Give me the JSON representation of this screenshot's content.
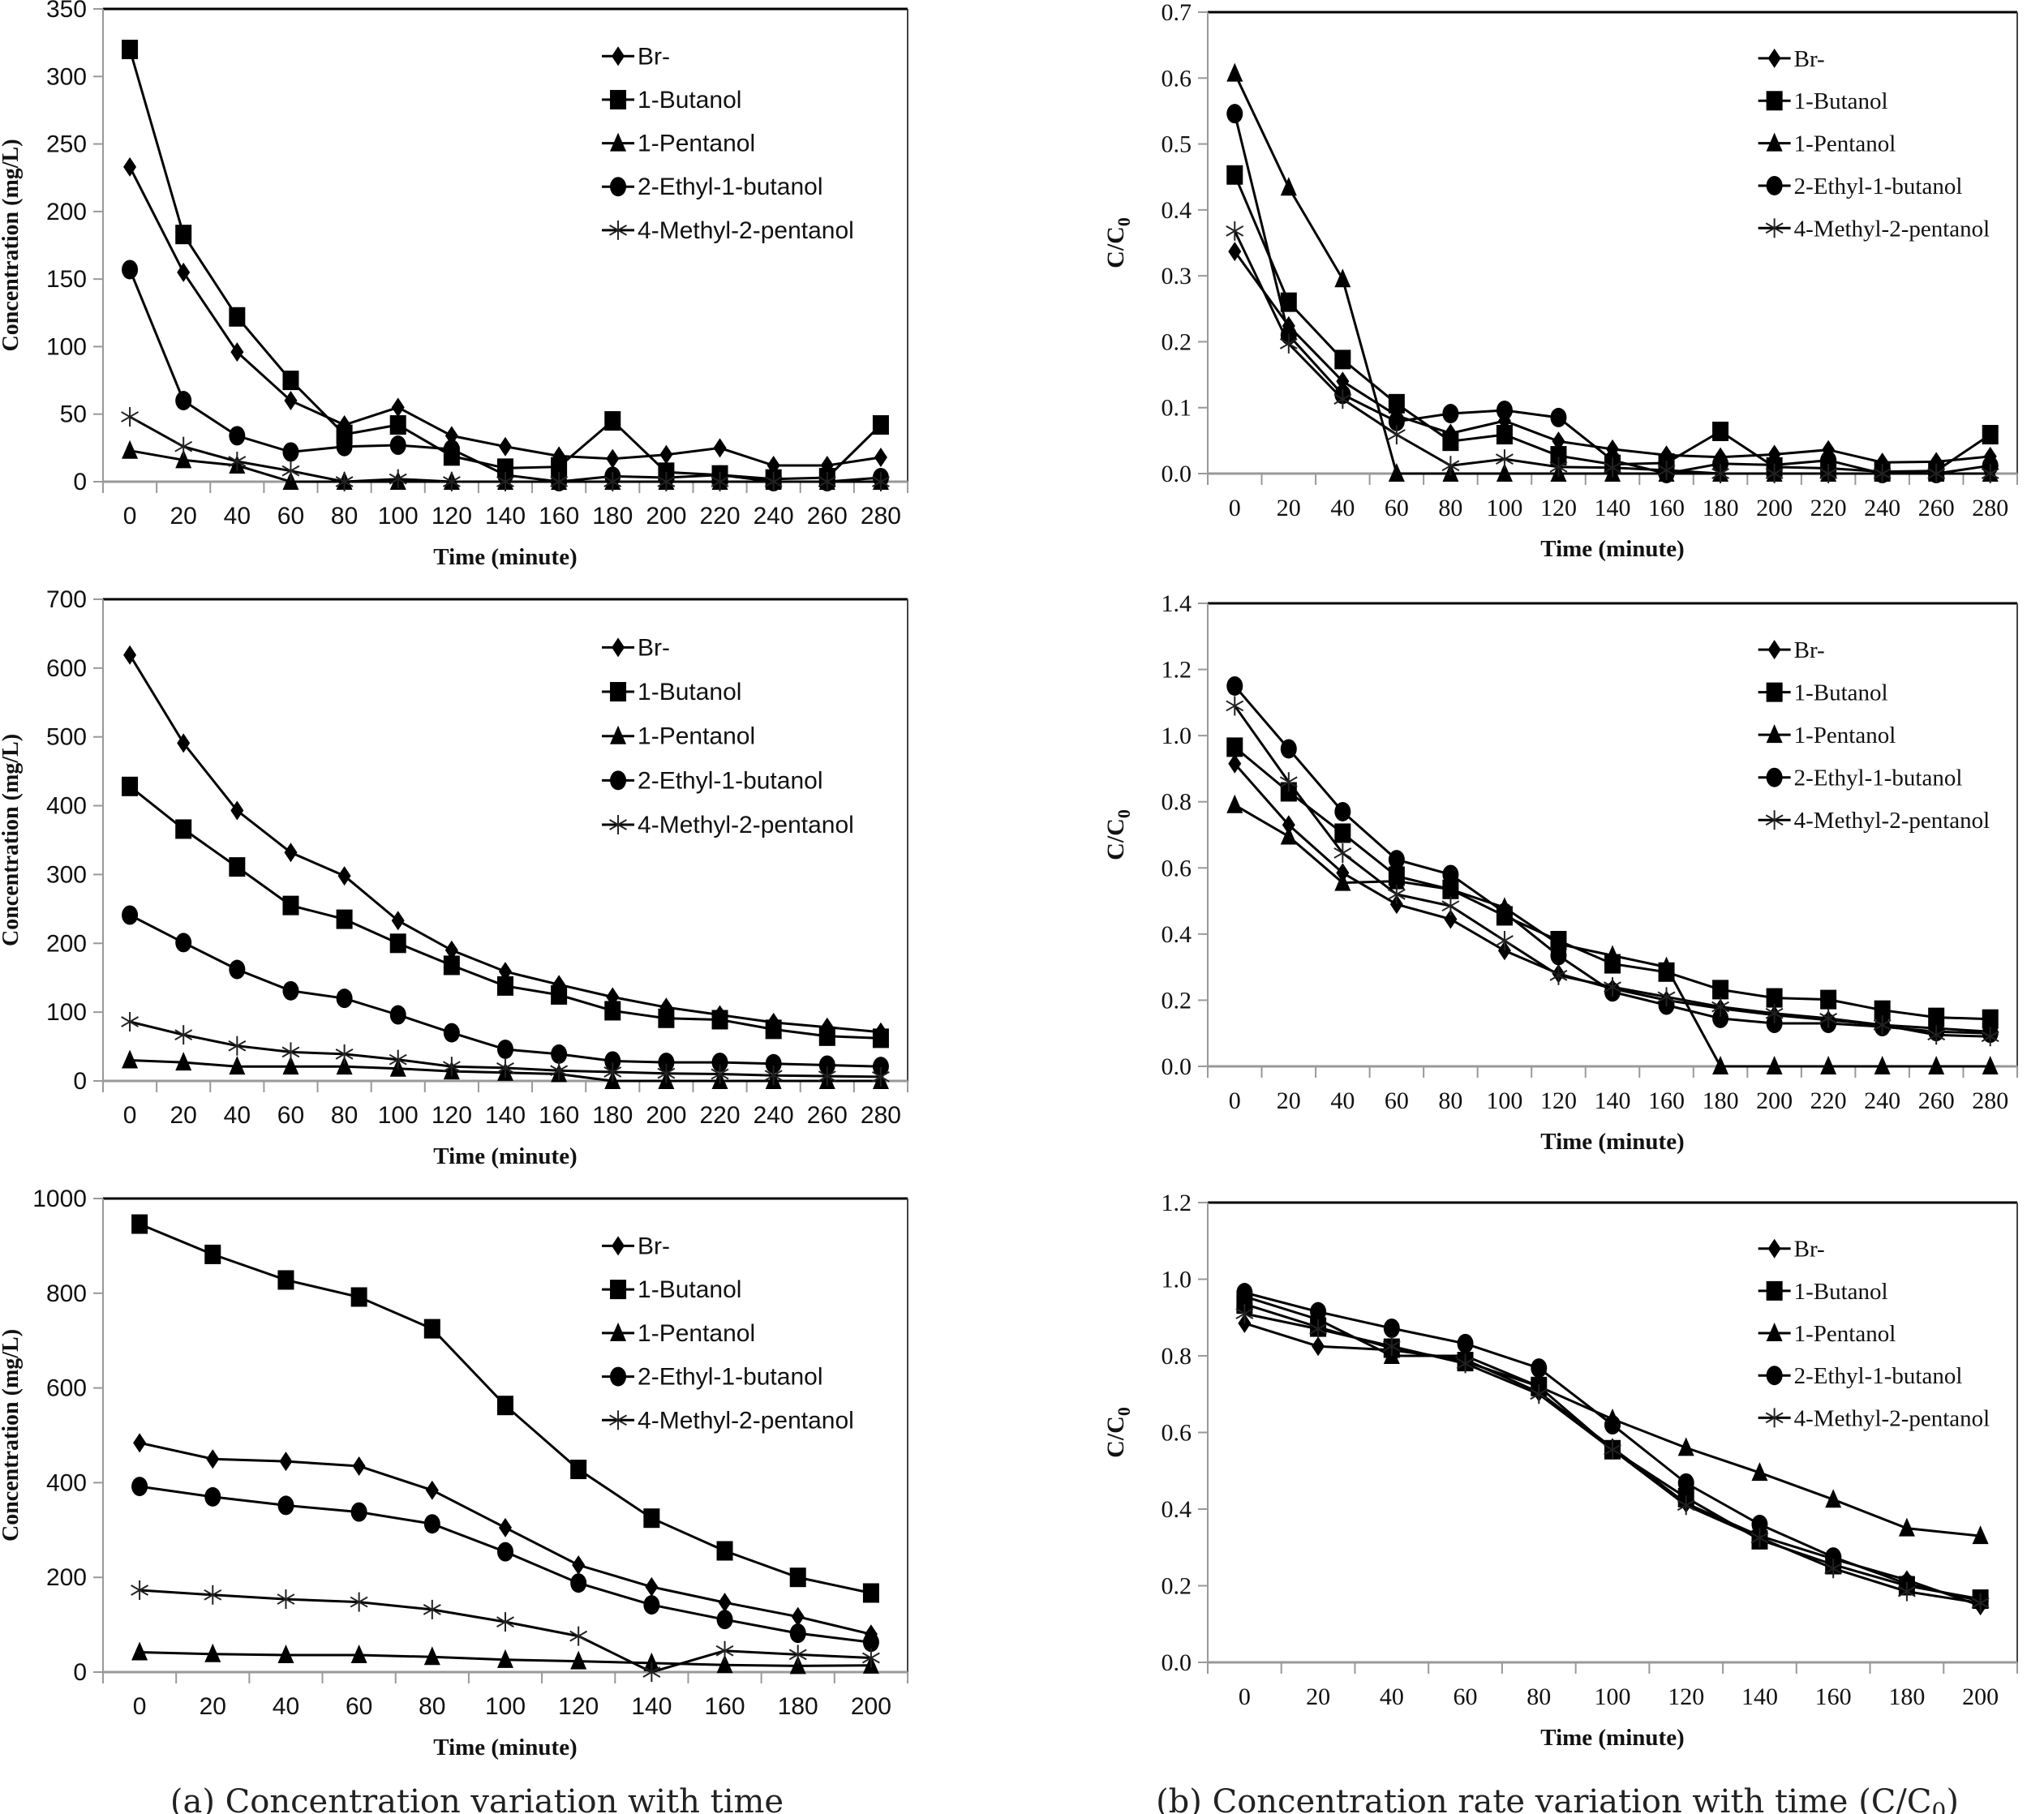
{
  "captions": {
    "left": "(a)  Concentration  variation  with  time",
    "right_prefix": "(b)  Concentration  rate  variation  with  time  (C/C",
    "right_sub": "0",
    "right_suffix": ")"
  },
  "chart_data": [
    {
      "id": "a1",
      "type": "line",
      "column": "a",
      "xlabel": "Time (minute)",
      "ylabel": "Concentration (mg/L)",
      "ylim": [
        0,
        350
      ],
      "yticks": [
        0,
        50,
        100,
        150,
        200,
        250,
        300,
        350
      ],
      "ytick_decimals": 0,
      "legend_position": "top-right",
      "categories": [
        0,
        20,
        40,
        60,
        80,
        100,
        120,
        140,
        160,
        180,
        200,
        220,
        240,
        260,
        280
      ],
      "series": [
        {
          "name": "Br-",
          "marker": "diamond",
          "values": [
            233,
            155,
            96,
            60,
            42,
            55,
            34,
            26,
            19,
            17,
            20,
            25,
            12,
            12,
            18
          ]
        },
        {
          "name": "1-Butanol",
          "marker": "square",
          "values": [
            320,
            183,
            122,
            75,
            35,
            42,
            19,
            10,
            11,
            45,
            7,
            5,
            2,
            3,
            42
          ]
        },
        {
          "name": "1-Pentanol",
          "marker": "triangle",
          "values": [
            23,
            16,
            12,
            0,
            0,
            0,
            0,
            0,
            0,
            0,
            0,
            0,
            0,
            0,
            0
          ]
        },
        {
          "name": "2-Ethyl-1-butanol",
          "marker": "circle",
          "values": [
            157,
            60,
            34,
            22,
            26,
            27,
            24,
            5,
            0,
            4,
            3,
            5,
            0,
            0,
            3
          ]
        },
        {
          "name": "4-Methyl-2-pentanol",
          "marker": "star",
          "values": [
            48,
            26,
            15,
            8,
            0,
            2,
            0,
            0,
            0,
            0,
            0,
            0,
            0,
            0,
            0
          ]
        }
      ]
    },
    {
      "id": "b1",
      "type": "line",
      "column": "b",
      "xlabel": "Time (minute)",
      "ylabel": "C/C",
      "ylabel_sub": "0",
      "ylim": [
        0,
        0.7
      ],
      "yticks": [
        0,
        0.1,
        0.2,
        0.3,
        0.4,
        0.5,
        0.6,
        0.7
      ],
      "ytick_decimals": 1,
      "legend_position": "top-right",
      "categories": [
        0,
        20,
        40,
        60,
        80,
        100,
        120,
        140,
        160,
        180,
        200,
        220,
        240,
        260,
        280
      ],
      "series": [
        {
          "name": "Br-",
          "marker": "diamond",
          "values": [
            0.337,
            0.224,
            0.14,
            0.088,
            0.061,
            0.08,
            0.049,
            0.037,
            0.028,
            0.025,
            0.029,
            0.036,
            0.017,
            0.018,
            0.026
          ]
        },
        {
          "name": "1-Butanol",
          "marker": "square",
          "values": [
            0.453,
            0.26,
            0.173,
            0.106,
            0.049,
            0.059,
            0.027,
            0.014,
            0.016,
            0.064,
            0.01,
            0.008,
            0.003,
            0.004,
            0.059
          ]
        },
        {
          "name": "1-Pentanol",
          "marker": "triangle",
          "values": [
            0.607,
            0.434,
            0.295,
            0,
            0,
            0,
            0,
            0,
            0,
            0,
            0,
            0,
            0,
            0,
            0
          ]
        },
        {
          "name": "2-Ethyl-1-butanol",
          "marker": "circle",
          "values": [
            0.546,
            0.21,
            0.12,
            0.079,
            0.091,
            0.096,
            0.085,
            0.02,
            0.0,
            0.015,
            0.013,
            0.02,
            0.0,
            0.0,
            0.012
          ]
        },
        {
          "name": "4-Methyl-2-pentanol",
          "marker": "star",
          "values": [
            0.368,
            0.197,
            0.113,
            0.059,
            0.012,
            0.022,
            0.01,
            0.009,
            0.005,
            0.0,
            0.0,
            0.0,
            0.0,
            0.0,
            0.0
          ]
        }
      ]
    },
    {
      "id": "a2",
      "type": "line",
      "column": "a",
      "xlabel": "Time (minute)",
      "ylabel": "Concentration (mg/L)",
      "ylim": [
        0,
        700
      ],
      "yticks": [
        0,
        100,
        200,
        300,
        400,
        500,
        600,
        700
      ],
      "ytick_decimals": 0,
      "legend_position": "top-right",
      "categories": [
        0,
        20,
        40,
        60,
        80,
        100,
        120,
        140,
        160,
        180,
        200,
        220,
        240,
        260,
        280
      ],
      "series": [
        {
          "name": "Br-",
          "marker": "diamond",
          "values": [
            619,
            491,
            393,
            332,
            298,
            233,
            190,
            159,
            140,
            122,
            107,
            96,
            85,
            78,
            71
          ]
        },
        {
          "name": "1-Butanol",
          "marker": "square",
          "values": [
            428,
            366,
            311,
            255,
            235,
            200,
            168,
            138,
            125,
            102,
            91,
            89,
            75,
            65,
            62
          ]
        },
        {
          "name": "1-Pentanol",
          "marker": "triangle",
          "values": [
            30,
            27,
            21,
            21,
            21,
            18,
            14,
            12,
            10,
            0,
            0,
            0,
            0,
            0,
            0
          ]
        },
        {
          "name": "2-Ethyl-1-butanol",
          "marker": "circle",
          "values": [
            241,
            201,
            162,
            131,
            120,
            96,
            70,
            46,
            39,
            29,
            27,
            27,
            25,
            23,
            21
          ]
        },
        {
          "name": "4-Methyl-2-pentanol",
          "marker": "star",
          "values": [
            86,
            67,
            51,
            42,
            39,
            31,
            21,
            19,
            15,
            13,
            11,
            10,
            8,
            7,
            6
          ]
        }
      ]
    },
    {
      "id": "b2",
      "type": "line",
      "column": "b",
      "xlabel": "Time (minute)",
      "ylabel": "C/C",
      "ylabel_sub": "0",
      "ylim": [
        0,
        1.4
      ],
      "yticks": [
        0,
        0.2,
        0.4,
        0.6,
        0.8,
        1.0,
        1.2,
        1.4
      ],
      "ytick_decimals": 1,
      "legend_position": "top-right",
      "categories": [
        0,
        20,
        40,
        60,
        80,
        100,
        120,
        140,
        160,
        180,
        200,
        220,
        240,
        260,
        280
      ],
      "series": [
        {
          "name": "Br-",
          "marker": "diamond",
          "values": [
            0.915,
            0.73,
            0.585,
            0.49,
            0.445,
            0.35,
            0.28,
            0.235,
            0.2,
            0.175,
            0.155,
            0.14,
            0.125,
            0.115,
            0.105
          ]
        },
        {
          "name": "1-Butanol",
          "marker": "square",
          "values": [
            0.965,
            0.83,
            0.705,
            0.575,
            0.535,
            0.455,
            0.38,
            0.31,
            0.285,
            0.232,
            0.207,
            0.202,
            0.17,
            0.148,
            0.143
          ]
        },
        {
          "name": "1-Pentanol",
          "marker": "triangle",
          "values": [
            0.79,
            0.695,
            0.555,
            0.56,
            0.535,
            0.48,
            0.37,
            0.335,
            0.3,
            0,
            0,
            0,
            0,
            0,
            0
          ]
        },
        {
          "name": "2-Ethyl-1-butanol",
          "marker": "circle",
          "values": [
            1.15,
            0.96,
            0.77,
            0.625,
            0.58,
            0.465,
            0.335,
            0.225,
            0.185,
            0.145,
            0.13,
            0.13,
            0.12,
            0.105,
            0.1
          ]
        },
        {
          "name": "4-Methyl-2-pentanol",
          "marker": "star",
          "values": [
            1.09,
            0.86,
            0.645,
            0.52,
            0.485,
            0.38,
            0.275,
            0.24,
            0.21,
            0.18,
            0.16,
            0.145,
            0.125,
            0.095,
            0.09
          ]
        }
      ]
    },
    {
      "id": "a3",
      "type": "line",
      "column": "a",
      "xlabel": "Time (minute)",
      "ylabel": "Concentration (mg/L)",
      "ylim": [
        0,
        1000
      ],
      "yticks": [
        0,
        200,
        400,
        600,
        800,
        1000
      ],
      "ytick_decimals": 0,
      "legend_position": "top-right",
      "categories": [
        0,
        20,
        40,
        60,
        80,
        100,
        120,
        140,
        160,
        180,
        200
      ],
      "series": [
        {
          "name": "Br-",
          "marker": "diamond",
          "values": [
            484,
            450,
            445,
            435,
            384,
            305,
            226,
            180,
            147,
            117,
            80
          ]
        },
        {
          "name": "1-Butanol",
          "marker": "square",
          "values": [
            946,
            882,
            828,
            792,
            725,
            563,
            428,
            325,
            256,
            200,
            167
          ]
        },
        {
          "name": "1-Pentanol",
          "marker": "triangle",
          "values": [
            42,
            38,
            36,
            36,
            32,
            26,
            23,
            19,
            15,
            13,
            14
          ]
        },
        {
          "name": "2-Ethyl-1-butanol",
          "marker": "circle",
          "values": [
            392,
            370,
            352,
            338,
            313,
            254,
            188,
            142,
            111,
            82,
            63
          ]
        },
        {
          "name": "4-Methyl-2-pentanol",
          "marker": "star",
          "values": [
            173,
            163,
            154,
            148,
            132,
            106,
            76,
            0,
            45,
            37,
            30
          ]
        }
      ]
    },
    {
      "id": "b3",
      "type": "line",
      "column": "b",
      "xlabel": "Time (minute)",
      "ylabel": "C/C",
      "ylabel_sub": "0",
      "ylim": [
        0,
        1.2
      ],
      "yticks": [
        0,
        0.2,
        0.4,
        0.6,
        0.8,
        1.0,
        1.2
      ],
      "ytick_decimals": 1,
      "legend_position": "top-right",
      "categories": [
        0,
        20,
        40,
        60,
        80,
        100,
        120,
        140,
        160,
        180,
        200
      ],
      "series": [
        {
          "name": "Br-",
          "marker": "diamond",
          "values": [
            0.885,
            0.825,
            0.815,
            0.79,
            0.705,
            0.56,
            0.415,
            0.33,
            0.27,
            0.215,
            0.148
          ]
        },
        {
          "name": "1-Butanol",
          "marker": "square",
          "values": [
            0.935,
            0.875,
            0.82,
            0.785,
            0.72,
            0.555,
            0.43,
            0.32,
            0.255,
            0.2,
            0.165
          ]
        },
        {
          "name": "1-Pentanol",
          "marker": "triangle",
          "values": [
            0.955,
            0.895,
            0.8,
            0.8,
            0.72,
            0.635,
            0.56,
            0.495,
            0.425,
            0.35,
            0.33
          ]
        },
        {
          "name": "2-Ethyl-1-butanol",
          "marker": "circle",
          "values": [
            0.965,
            0.915,
            0.872,
            0.832,
            0.768,
            0.62,
            0.468,
            0.36,
            0.275,
            0.205,
            0.16
          ]
        },
        {
          "name": "4-Methyl-2-pentanol",
          "marker": "star",
          "values": [
            0.91,
            0.87,
            0.825,
            0.78,
            0.7,
            0.555,
            0.41,
            0.325,
            0.245,
            0.185,
            0.155
          ]
        }
      ]
    }
  ]
}
